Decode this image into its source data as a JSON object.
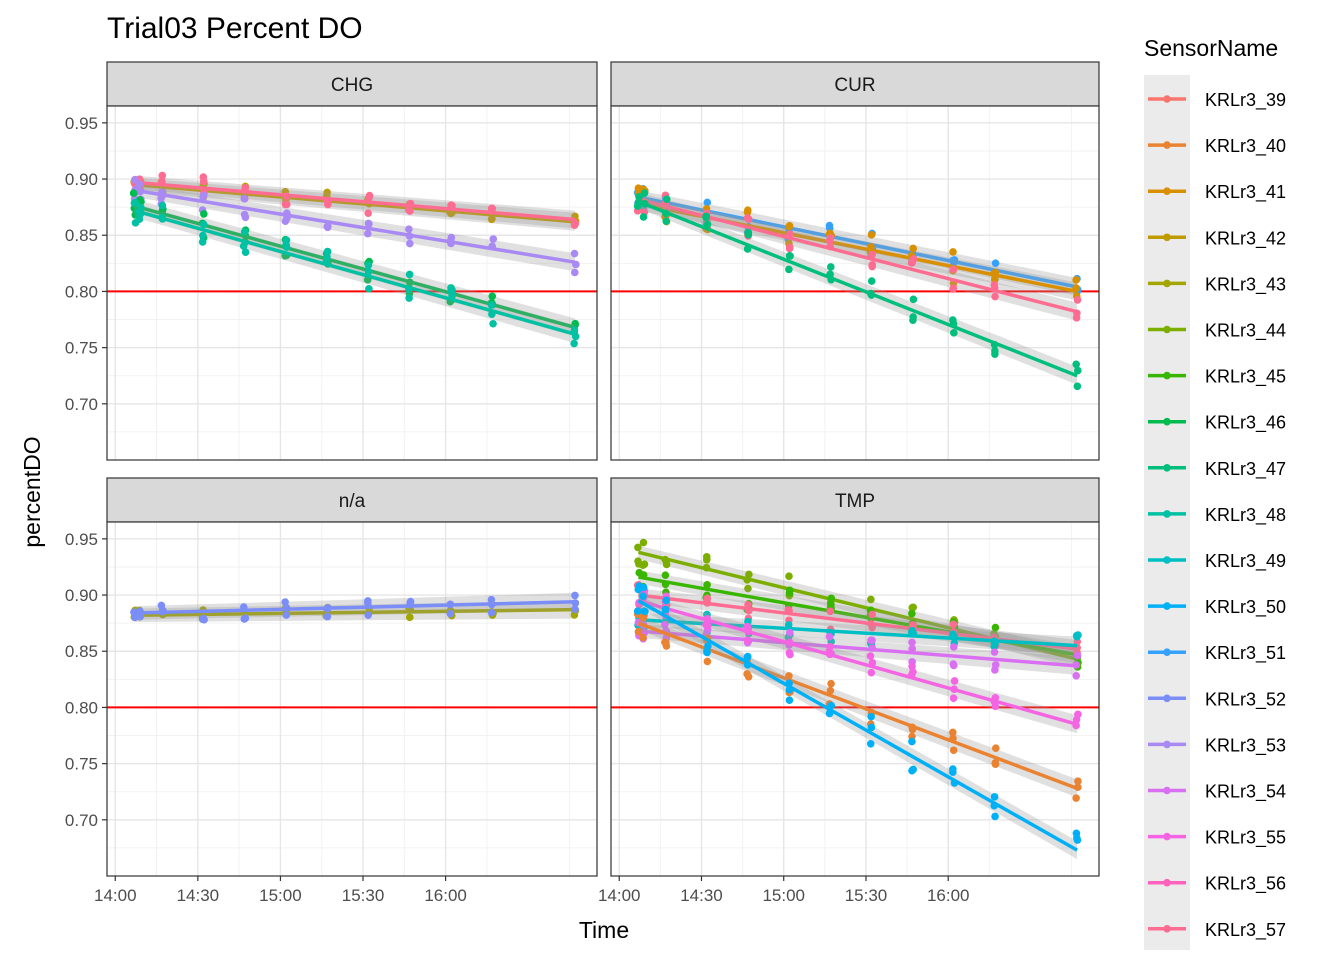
{
  "chart_data": {
    "type": "scatter",
    "title": "Trial03 Percent DO",
    "xlabel": "Time",
    "ylabel": "percentDO",
    "x_ticks": [
      "14:00",
      "14:30",
      "15:00",
      "15:30",
      "16:00"
    ],
    "y_ticks": [
      "0.70",
      "0.75",
      "0.80",
      "0.85",
      "0.90",
      "0.95"
    ],
    "ylim": [
      0.65,
      0.965
    ],
    "xlim_minutes": [
      -3,
      175
    ],
    "reference_line": {
      "y": 0.8,
      "color": "#ff0000"
    },
    "legend": {
      "title": "SensorName",
      "placement": "right",
      "items": [
        {
          "name": "KRLr3_39",
          "color": "#F8766D"
        },
        {
          "name": "KRLr3_40",
          "color": "#EA8331"
        },
        {
          "name": "KRLr3_41",
          "color": "#D89000"
        },
        {
          "name": "KRLr3_42",
          "color": "#C09B00"
        },
        {
          "name": "KRLr3_43",
          "color": "#A3A500"
        },
        {
          "name": "KRLr3_44",
          "color": "#7CAE00"
        },
        {
          "name": "KRLr3_45",
          "color": "#39B600"
        },
        {
          "name": "KRLr3_46",
          "color": "#00BB4E"
        },
        {
          "name": "KRLr3_47",
          "color": "#00BF7D"
        },
        {
          "name": "KRLr3_48",
          "color": "#00C1A3"
        },
        {
          "name": "KRLr3_49",
          "color": "#00BFC4"
        },
        {
          "name": "KRLr3_50",
          "color": "#00B0F6"
        },
        {
          "name": "KRLr3_51",
          "color": "#35A2FF"
        },
        {
          "name": "KRLr3_52",
          "color": "#7B8EF8"
        },
        {
          "name": "KRLr3_53",
          "color": "#A989F3"
        },
        {
          "name": "KRLr3_54",
          "color": "#D970F2"
        },
        {
          "name": "KRLr3_55",
          "color": "#F464E3"
        },
        {
          "name": "KRLr3_56",
          "color": "#FF62BC"
        },
        {
          "name": "KRLr3_57",
          "color": "#FF6C91"
        }
      ]
    },
    "panels": [
      {
        "label": "CHG",
        "times": [
          7,
          9,
          17,
          32,
          47,
          62,
          77,
          92,
          107,
          122,
          137,
          167
        ],
        "series": [
          {
            "sensor": "KRLr3_42",
            "start": 0.895,
            "end": 0.862,
            "spread": 0.008
          },
          {
            "sensor": "KRLr3_57",
            "start": 0.897,
            "end": 0.864,
            "spread": 0.01
          },
          {
            "sensor": "KRLr3_53",
            "start": 0.89,
            "end": 0.826,
            "spread": 0.01
          },
          {
            "sensor": "KRLr3_46",
            "start": 0.876,
            "end": 0.768,
            "spread": 0.012
          },
          {
            "sensor": "KRLr3_48",
            "start": 0.872,
            "end": 0.762,
            "spread": 0.012
          }
        ]
      },
      {
        "label": "CUR",
        "times": [
          7,
          9,
          17,
          32,
          47,
          62,
          77,
          92,
          107,
          122,
          137,
          167
        ],
        "series": [
          {
            "sensor": "KRLr3_51",
            "start": 0.884,
            "end": 0.804,
            "spread": 0.012
          },
          {
            "sensor": "KRLr3_41",
            "start": 0.878,
            "end": 0.8,
            "spread": 0.015
          },
          {
            "sensor": "KRLr3_57",
            "start": 0.882,
            "end": 0.782,
            "spread": 0.012
          },
          {
            "sensor": "KRLr3_47",
            "start": 0.88,
            "end": 0.725,
            "spread": 0.012
          }
        ]
      },
      {
        "label": "n/a",
        "times": [
          7,
          9,
          17,
          32,
          47,
          62,
          77,
          92,
          107,
          122,
          137,
          167
        ],
        "series": [
          {
            "sensor": "KRLr3_43",
            "start": 0.882,
            "end": 0.887,
            "spread": 0.005
          },
          {
            "sensor": "KRLr3_52",
            "start": 0.884,
            "end": 0.894,
            "spread": 0.008
          }
        ]
      },
      {
        "label": "TMP",
        "times": [
          7,
          9,
          17,
          32,
          47,
          62,
          77,
          92,
          107,
          122,
          137,
          167
        ],
        "series": [
          {
            "sensor": "KRLr3_44",
            "start": 0.938,
            "end": 0.843,
            "spread": 0.012
          },
          {
            "sensor": "KRLr3_45",
            "start": 0.916,
            "end": 0.847,
            "spread": 0.012
          },
          {
            "sensor": "KRLr3_57",
            "start": 0.9,
            "end": 0.852,
            "spread": 0.01
          },
          {
            "sensor": "KRLr3_49",
            "start": 0.878,
            "end": 0.855,
            "spread": 0.01
          },
          {
            "sensor": "KRLr3_54",
            "start": 0.868,
            "end": 0.837,
            "spread": 0.01
          },
          {
            "sensor": "KRLr3_55",
            "start": 0.895,
            "end": 0.785,
            "spread": 0.012
          },
          {
            "sensor": "KRLr3_40",
            "start": 0.875,
            "end": 0.728,
            "spread": 0.012
          },
          {
            "sensor": "KRLr3_50",
            "start": 0.895,
            "end": 0.673,
            "spread": 0.015
          }
        ]
      }
    ]
  }
}
